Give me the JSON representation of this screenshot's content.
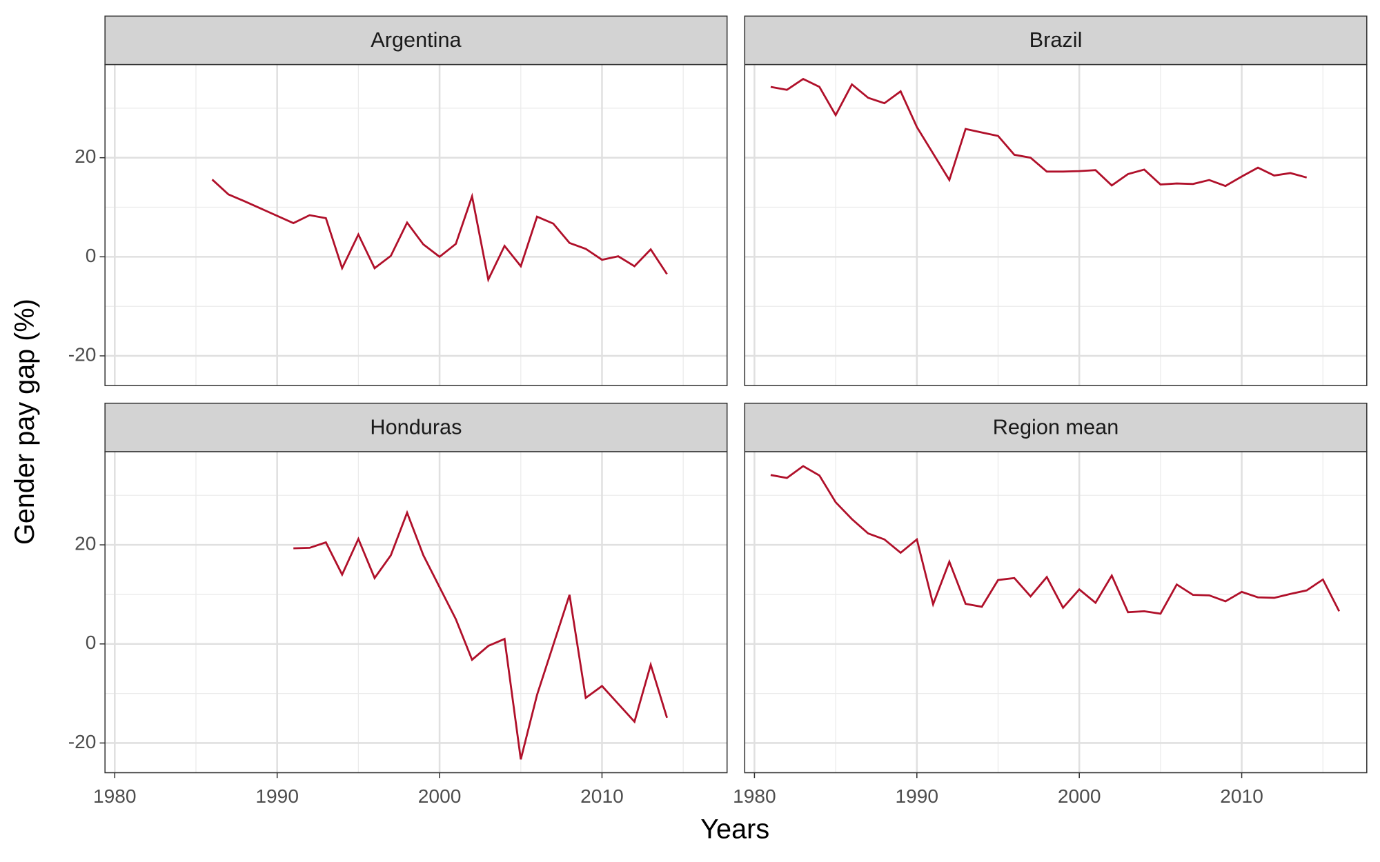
{
  "chart_data": {
    "type": "line",
    "xlabel": "Years",
    "ylabel": "Gender pay gap (%)",
    "color": "#b0102a",
    "grid": true,
    "xlim": [
      1979.4,
      2017.7
    ],
    "ylim": [
      -26,
      38.8
    ],
    "xticks": [
      1980,
      1990,
      2000,
      2010
    ],
    "yticks": [
      -20,
      0,
      20
    ],
    "xminor": [
      1985,
      1995,
      2005,
      2015
    ],
    "yminor": [
      -10,
      10,
      30
    ],
    "panels": [
      {
        "title": "Argentina",
        "x": [
          1986,
          1987,
          1988,
          1991,
          1992,
          1993,
          1994,
          1995,
          1996,
          1997,
          1998,
          1999,
          2000,
          2001,
          2002,
          2003,
          2004,
          2005,
          2006,
          2007,
          2008,
          2009,
          2010,
          2011,
          2012,
          2013,
          2014
        ],
        "values": [
          15.6,
          12.6,
          11.2,
          6.8,
          8.4,
          7.8,
          -2.3,
          4.5,
          -2.3,
          0.2,
          6.9,
          2.5,
          0,
          2.6,
          12.2,
          -4.6,
          2.2,
          -1.9,
          8.1,
          6.7,
          2.8,
          1.6,
          -0.6,
          0.1,
          -1.9,
          1.5,
          -3.5
        ]
      },
      {
        "title": "Brazil",
        "x": [
          1981,
          1982,
          1983,
          1984,
          1985,
          1986,
          1987,
          1988,
          1989,
          1990,
          1992,
          1993,
          1994,
          1995,
          1996,
          1997,
          1998,
          1999,
          2000,
          2001,
          2002,
          2003,
          2004,
          2005,
          2006,
          2007,
          2008,
          2009,
          2010,
          2011,
          2012,
          2013,
          2014
        ],
        "values": [
          34.3,
          33.7,
          35.9,
          34.3,
          28.6,
          34.8,
          32.1,
          31.0,
          33.4,
          26.2,
          15.5,
          25.8,
          25.1,
          24.4,
          20.6,
          20.0,
          17.2,
          17.2,
          17.3,
          17.5,
          14.4,
          16.7,
          17.6,
          14.6,
          14.8,
          14.7,
          15.5,
          14.3,
          16.2,
          18.0,
          16.4,
          16.9,
          16.0
        ]
      },
      {
        "title": "Honduras",
        "x": [
          1991,
          1992,
          1993,
          1994,
          1995,
          1996,
          1997,
          1998,
          1999,
          2001,
          2002,
          2003,
          2004,
          2005,
          2006,
          2008,
          2009,
          2010,
          2012,
          2013,
          2014
        ],
        "values": [
          19.3,
          19.4,
          20.5,
          14.0,
          21.2,
          13.3,
          17.9,
          26.5,
          17.9,
          5.0,
          -3.2,
          -0.4,
          1.0,
          -23.3,
          -10.3,
          9.9,
          -10.9,
          -8.5,
          -15.7,
          -4.2,
          -14.9
        ]
      },
      {
        "title": "Region mean",
        "x": [
          1981,
          1982,
          1983,
          1984,
          1985,
          1986,
          1987,
          1988,
          1989,
          1990,
          1991,
          1992,
          1993,
          1994,
          1995,
          1996,
          1997,
          1998,
          1999,
          2000,
          2001,
          2002,
          2003,
          2004,
          2005,
          2006,
          2007,
          2008,
          2009,
          2010,
          2011,
          2012,
          2013,
          2014,
          2015,
          2016
        ],
        "values": [
          34.1,
          33.5,
          35.9,
          34.0,
          28.6,
          25.2,
          22.3,
          21.1,
          18.4,
          21.1,
          8.0,
          16.6,
          8.1,
          7.5,
          12.9,
          13.3,
          9.6,
          13.5,
          7.3,
          11.0,
          8.3,
          13.8,
          6.4,
          6.6,
          6.1,
          12.0,
          9.9,
          9.8,
          8.6,
          10.5,
          9.4,
          9.3,
          10.1,
          10.8,
          13.0,
          6.6
        ]
      }
    ]
  }
}
